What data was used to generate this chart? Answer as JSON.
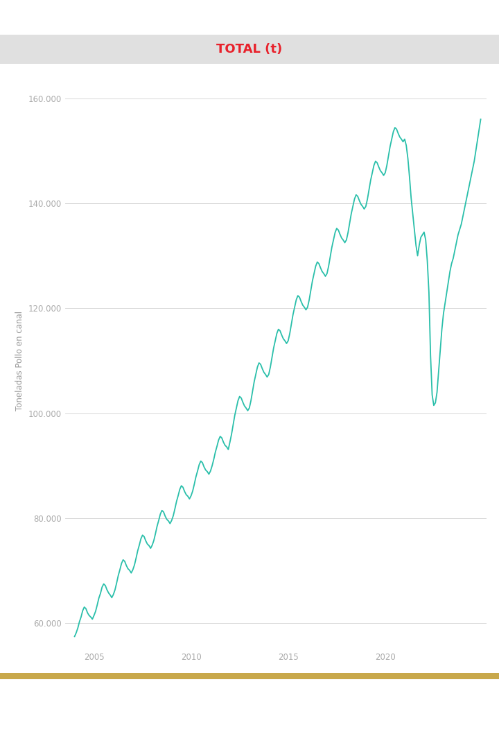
{
  "title": "TOTAL (t)",
  "title_color": "#e8212b",
  "ylabel": "Toneladas Pollo en canal",
  "ylabel_color": "#999999",
  "tick_color": "#aaaaaa",
  "line_color": "#2abfaa",
  "background_color": "#ffffff",
  "title_bg_color": "#e0e0e0",
  "ylim": [
    55000,
    165000
  ],
  "yticks": [
    60000,
    80000,
    100000,
    120000,
    140000,
    160000
  ],
  "ytick_labels": [
    "60.000",
    "80.000",
    "100.000",
    "120.000",
    "140.000",
    "160.000"
  ],
  "xtick_years": [
    2005,
    2010,
    2015,
    2020
  ],
  "figsize": [
    7.2,
    10.58
  ],
  "dpi": 100,
  "line_width": 1.3,
  "values": [
    57500,
    58200,
    59100,
    60300,
    61200,
    62400,
    63100,
    62800,
    62000,
    61500,
    61200,
    60800,
    61500,
    62300,
    63500,
    64800,
    65700,
    66900,
    67500,
    67200,
    66400,
    65800,
    65400,
    64900,
    65500,
    66400,
    67700,
    69100,
    70200,
    71400,
    72100,
    71800,
    71000,
    70400,
    70100,
    69600,
    70200,
    71100,
    72400,
    73800,
    74900,
    76100,
    76800,
    76500,
    75700,
    75100,
    74800,
    74300,
    74900,
    75800,
    77100,
    78500,
    79600,
    80800,
    81500,
    81200,
    80400,
    79800,
    79500,
    79000,
    79600,
    80500,
    81800,
    83200,
    84300,
    85500,
    86200,
    85900,
    85100,
    84500,
    84200,
    83700,
    84300,
    85200,
    86500,
    87900,
    89000,
    90200,
    90900,
    90600,
    89800,
    89200,
    88900,
    88400,
    89000,
    90000,
    91200,
    92600,
    93700,
    94900,
    95600,
    95300,
    94500,
    93900,
    93600,
    93100,
    94500,
    96000,
    97800,
    99600,
    101000,
    102400,
    103200,
    102900,
    102100,
    101400,
    101000,
    100500,
    101000,
    102400,
    104200,
    106000,
    107400,
    108800,
    109600,
    109300,
    108500,
    107800,
    107400,
    106900,
    107400,
    108800,
    110600,
    112400,
    113800,
    115200,
    116000,
    115700,
    114900,
    114200,
    113800,
    113300,
    113800,
    115200,
    117000,
    118800,
    120200,
    121600,
    122400,
    122100,
    121300,
    120600,
    120200,
    119700,
    120200,
    121600,
    123400,
    125200,
    126600,
    128000,
    128800,
    128500,
    127700,
    127000,
    126600,
    126100,
    126600,
    128000,
    129800,
    131600,
    133000,
    134400,
    135200,
    134900,
    134100,
    133400,
    133000,
    132500,
    133000,
    134400,
    136200,
    138000,
    139400,
    140800,
    141600,
    141300,
    140500,
    139800,
    139400,
    138900,
    139400,
    140800,
    142600,
    144400,
    145800,
    147200,
    148000,
    147700,
    146900,
    146200,
    145800,
    145300,
    145800,
    147200,
    149000,
    150800,
    152200,
    153600,
    154400,
    154100,
    153300,
    152600,
    152200,
    151700,
    152200,
    151000,
    148500,
    145000,
    141000,
    138000,
    135000,
    132000,
    130000,
    132000,
    133500,
    134000,
    134500,
    133000,
    129000,
    123000,
    111000,
    103500,
    101500,
    102000,
    104000,
    108000,
    112000,
    116000,
    119000,
    121000,
    123000,
    125000,
    127000,
    128500,
    129500,
    131000,
    132500,
    134000,
    135000,
    136000,
    137500,
    139000,
    140500,
    142000,
    143500,
    145000,
    146500,
    148000,
    150000,
    152000,
    154000,
    156000
  ]
}
